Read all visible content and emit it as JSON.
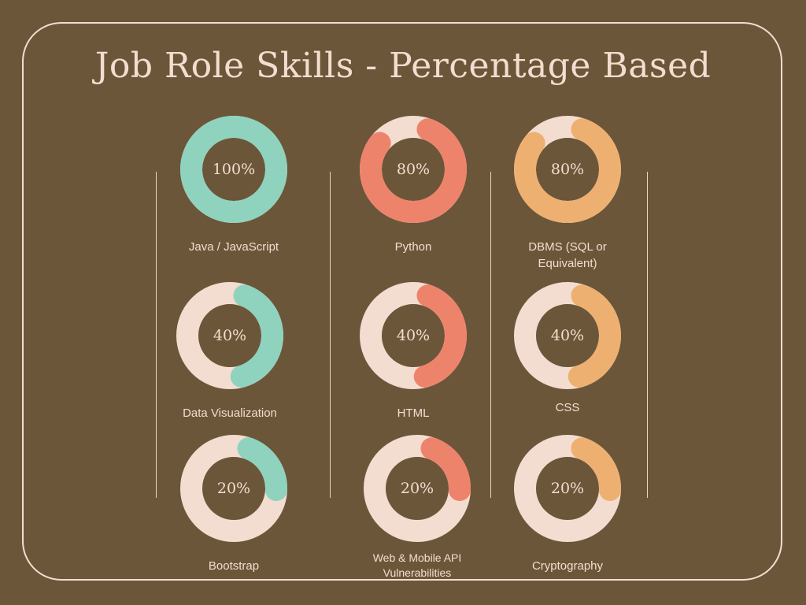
{
  "title": "Job Role Skills - Percentage Based",
  "colors": {
    "background": "#6b5639",
    "track": "#f3ddd0",
    "teal": "#8fd3be",
    "salmon": "#ee836c",
    "orange": "#eeb071",
    "text": "#f3ddd0"
  },
  "chart_data": {
    "type": "donut",
    "title": "Job Role Skills - Percentage Based",
    "items": [
      {
        "label": "Java / JavaScript",
        "value": 100,
        "display": "100%",
        "color": "#8fd3be"
      },
      {
        "label": "Python",
        "value": 80,
        "display": "80%",
        "color": "#ee836c"
      },
      {
        "label": "DBMS (SQL or Equivalent)",
        "value": 80,
        "display": "80%",
        "color": "#eeb071"
      },
      {
        "label": "Data Visualization",
        "value": 40,
        "display": "40%",
        "color": "#8fd3be"
      },
      {
        "label": "HTML",
        "value": 40,
        "display": "40%",
        "color": "#ee836c"
      },
      {
        "label": "CSS",
        "value": 40,
        "display": "40%",
        "color": "#eeb071"
      },
      {
        "label": "Bootstrap",
        "value": 20,
        "display": "20%",
        "color": "#8fd3be"
      },
      {
        "label": "Web & Mobile API Vulnerabilities",
        "value": 20,
        "display": "20%",
        "color": "#ee836c"
      },
      {
        "label": "Cryptography",
        "value": 20,
        "display": "20%",
        "color": "#eeb071"
      }
    ]
  }
}
